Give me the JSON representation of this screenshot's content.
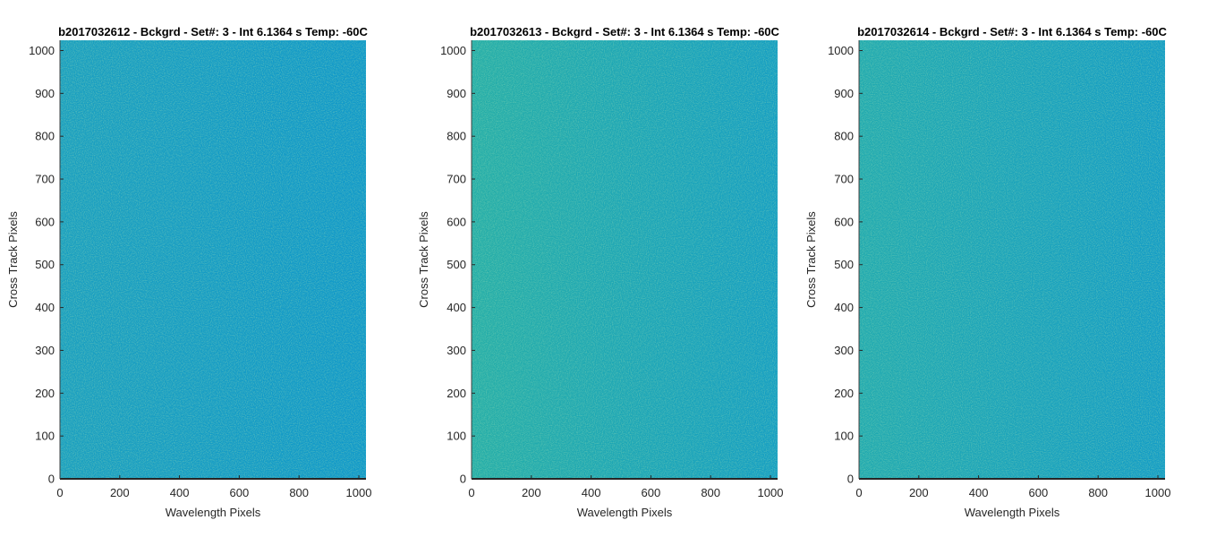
{
  "chart_data": [
    {
      "type": "heatmap",
      "title": "b2017032612 - Bckgrd - Set#: 3 - Int 6.1364 s Temp: -60C",
      "xlabel": "Wavelength Pixels",
      "ylabel": "Cross Track Pixels",
      "xlim": [
        0,
        1024
      ],
      "ylim": [
        0,
        1024
      ],
      "xticks": [
        0,
        200,
        400,
        600,
        800,
        1000
      ],
      "yticks": [
        0,
        100,
        200,
        300,
        400,
        500,
        600,
        700,
        800,
        900,
        1000
      ],
      "colormap": "parula",
      "left_color": "#1a9fc0",
      "right_color": "#0f98ca",
      "grid": false
    },
    {
      "type": "heatmap",
      "title": "b2017032613 - Bckgrd - Set#: 3 - Int 6.1364 s Temp: -60C",
      "xlabel": "Wavelength Pixels",
      "ylabel": "Cross Track Pixels",
      "xlim": [
        0,
        1024
      ],
      "ylim": [
        0,
        1024
      ],
      "xticks": [
        0,
        200,
        400,
        600,
        800,
        1000
      ],
      "yticks": [
        0,
        100,
        200,
        300,
        400,
        500,
        600,
        700,
        800,
        900,
        1000
      ],
      "colormap": "parula",
      "left_color": "#25aea8",
      "right_color": "#149ec3",
      "grid": false
    },
    {
      "type": "heatmap",
      "title": "b2017032614 - Bckgrd - Set#: 3 - Int 6.1364 s Temp: -60C",
      "xlabel": "Wavelength Pixels",
      "ylabel": "Cross Track Pixels",
      "xlim": [
        0,
        1024
      ],
      "ylim": [
        0,
        1024
      ],
      "xticks": [
        0,
        200,
        400,
        600,
        800,
        1000
      ],
      "yticks": [
        0,
        100,
        200,
        300,
        400,
        500,
        600,
        700,
        800,
        900,
        1000
      ],
      "colormap": "parula",
      "left_color": "#21aab0",
      "right_color": "#139cc6",
      "grid": false
    }
  ]
}
